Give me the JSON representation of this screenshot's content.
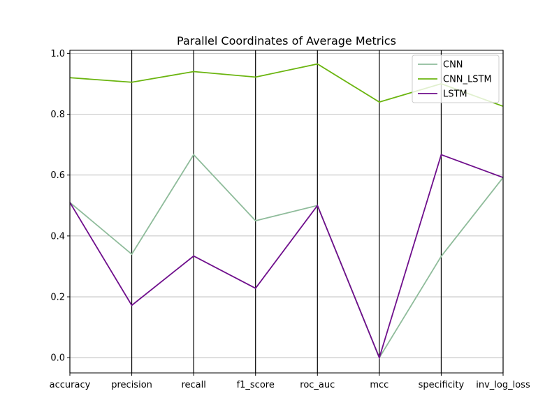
{
  "chart_data": {
    "type": "line",
    "title": "Parallel Coordinates of Average Metrics",
    "xlabel": "",
    "ylabel": "",
    "ylim": [
      -0.05,
      1.01
    ],
    "yticks": [
      0.0,
      0.2,
      0.4,
      0.6,
      0.8,
      1.0
    ],
    "ytick_labels": [
      "0.0",
      "0.2",
      "0.4",
      "0.6",
      "0.8",
      "1.0"
    ],
    "categories": [
      "accuracy",
      "precision",
      "recall",
      "f1_score",
      "roc_auc",
      "mcc",
      "specificity",
      "inv_log_loss"
    ],
    "grid": "horizontal",
    "legend_position": "top-right",
    "series": [
      {
        "name": "CNN",
        "color": "#8fbc9b",
        "values": [
          0.51,
          0.34,
          0.667,
          0.45,
          0.5,
          0.0,
          0.333,
          0.592
        ]
      },
      {
        "name": "CNN_LSTM",
        "color": "#6bb510",
        "values": [
          0.92,
          0.905,
          0.94,
          0.922,
          0.965,
          0.84,
          0.9,
          0.826
        ]
      },
      {
        "name": "LSTM",
        "color": "#6f0f8c",
        "values": [
          0.51,
          0.172,
          0.334,
          0.228,
          0.5,
          0.0,
          0.667,
          0.592
        ]
      }
    ]
  }
}
